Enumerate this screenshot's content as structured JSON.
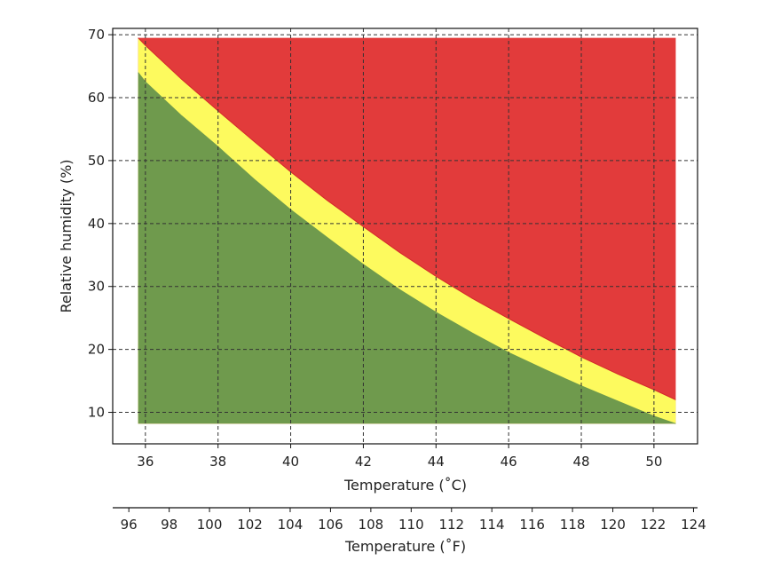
{
  "chart_data": {
    "type": "area",
    "xlabel": "Temperature (˚C)",
    "ylabel": "Relative humidity (%)",
    "x2label": "Temperature (˚F)",
    "xlim": [
      35.1,
      51.2
    ],
    "ylim": [
      5,
      71
    ],
    "x2lim": [
      95.2,
      124.2
    ],
    "xticks": [
      36,
      38,
      40,
      42,
      44,
      46,
      48,
      50
    ],
    "yticks": [
      10,
      20,
      30,
      40,
      50,
      60,
      70
    ],
    "x2ticks": [
      96,
      98,
      100,
      102,
      104,
      106,
      108,
      110,
      112,
      114,
      116,
      118,
      120,
      122,
      124
    ],
    "grid": true,
    "region_bounds": {
      "x_min": 35.8,
      "x_max": 50.6,
      "y_min": 8.2,
      "y_max": 69.5
    },
    "series": [
      {
        "color": "#6f9a4d",
        "x": [
          35.8,
          36,
          37,
          38,
          39,
          40,
          41,
          42,
          43,
          44,
          45,
          46,
          47,
          48,
          49,
          50,
          50.6
        ],
        "values": [
          64,
          62.5,
          57.1,
          52.2,
          47.0,
          42.2,
          37.8,
          33.5,
          29.5,
          25.9,
          22.6,
          19.5,
          16.8,
          14.2,
          11.8,
          9.4,
          8.2
        ]
      },
      {
        "color": "#fdfa5e",
        "x": [
          35.8,
          36,
          37,
          38,
          39,
          40,
          41,
          42,
          43,
          44,
          45,
          46,
          47,
          48,
          49,
          50,
          50.6
        ],
        "values": [
          69.5,
          68.3,
          62.9,
          57.9,
          53.0,
          48.2,
          43.7,
          39.5,
          35.4,
          31.6,
          28.1,
          24.9,
          21.8,
          18.8,
          16.1,
          13.6,
          12.0
        ]
      },
      {
        "color": "#e23b3b",
        "x": [
          35.8,
          50.6
        ],
        "values": [
          69.5,
          69.5
        ]
      }
    ]
  }
}
